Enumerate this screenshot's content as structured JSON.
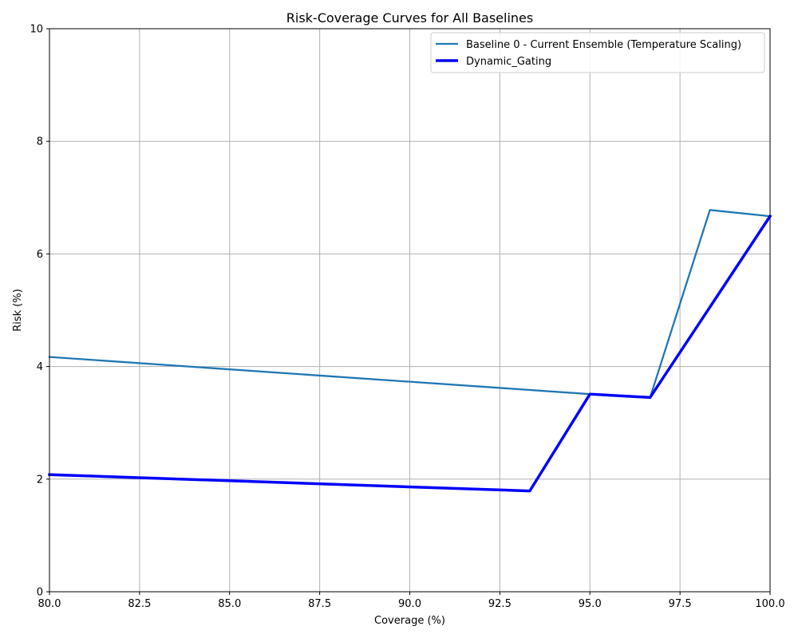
{
  "chart_data": {
    "type": "line",
    "title": "Risk-Coverage Curves for All Baselines",
    "xlabel": "Coverage (%)",
    "ylabel": "Risk (%)",
    "xlim": [
      80,
      100
    ],
    "ylim": [
      0,
      10
    ],
    "x_ticks": [
      "80.0",
      "82.5",
      "85.0",
      "87.5",
      "90.0",
      "92.5",
      "95.0",
      "97.5",
      "100.0"
    ],
    "y_ticks": [
      "0",
      "2",
      "4",
      "6",
      "8",
      "10"
    ],
    "grid": true,
    "legend_position": "top-right",
    "series": [
      {
        "name": "Baseline 0 - Current Ensemble (Temperature Scaling)",
        "color": "#1f77b4",
        "line_width": "normal",
        "points": [
          [
            80.0,
            4.17
          ],
          [
            95.0,
            3.51
          ],
          [
            96.67,
            3.45
          ],
          [
            98.33,
            6.78
          ],
          [
            100.0,
            6.67
          ]
        ]
      },
      {
        "name": "Dynamic_Gating",
        "color": "#0000ff",
        "line_width": "thick",
        "points": [
          [
            80.0,
            2.08
          ],
          [
            93.33,
            1.79
          ],
          [
            95.0,
            3.51
          ],
          [
            96.67,
            3.45
          ],
          [
            100.0,
            6.67
          ]
        ]
      }
    ]
  }
}
